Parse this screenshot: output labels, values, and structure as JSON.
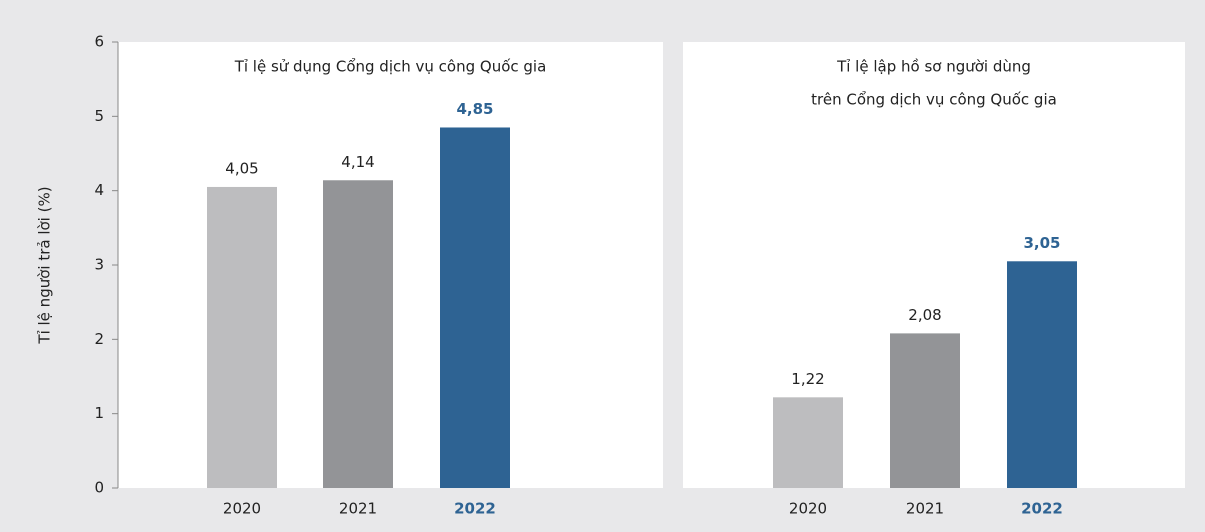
{
  "chart_data": [
    {
      "type": "bar",
      "title": [
        "Tỉ lệ sử dụng Cổng dịch vụ công Quốc gia"
      ],
      "ylabel": "Tỉ lệ người trả lời (%)",
      "categories": [
        "2020",
        "2021",
        "2022"
      ],
      "values": [
        4.05,
        4.14,
        4.85
      ],
      "value_labels": [
        "4,05",
        "4,14",
        "4,85"
      ],
      "colors": [
        "#bdbdbf",
        "#939497",
        "#2e6393"
      ],
      "emphasis": [
        false,
        false,
        true
      ],
      "ylim": [
        0,
        6
      ],
      "yticks": [
        0,
        1,
        2,
        3,
        4,
        5,
        6
      ]
    },
    {
      "type": "bar",
      "title": [
        "Tỉ lệ lập hồ sơ người dùng",
        "trên Cổng dịch vụ công Quốc gia"
      ],
      "categories": [
        "2020",
        "2021",
        "2022"
      ],
      "values": [
        1.22,
        2.08,
        3.05
      ],
      "value_labels": [
        "1,22",
        "2,08",
        "3,05"
      ],
      "colors": [
        "#bdbdbf",
        "#939497",
        "#2e6393"
      ],
      "emphasis": [
        false,
        false,
        true
      ],
      "ylim": [
        0,
        6
      ]
    }
  ]
}
